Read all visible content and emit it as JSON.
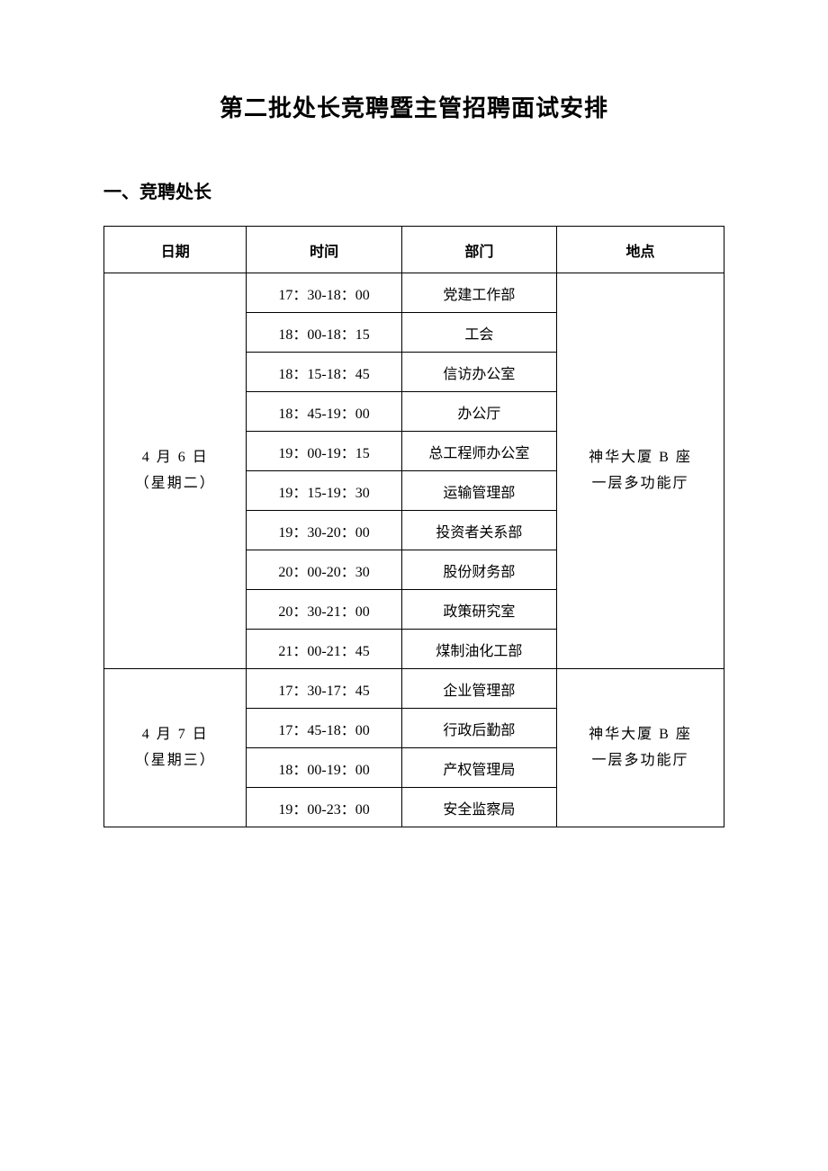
{
  "document": {
    "title": "第二批处长竞聘暨主管招聘面试安排",
    "section1_heading": "一、竞聘处长"
  },
  "table": {
    "headers": {
      "date": "日期",
      "time": "时间",
      "dept": "部门",
      "location": "地点"
    },
    "group1": {
      "date_line1": "4 月 6 日",
      "date_line2": "（星期二）",
      "location_line1": "神华大厦 B 座",
      "location_line2": "一层多功能厅",
      "rows": [
        {
          "time": "17：30-18：00",
          "dept": "党建工作部"
        },
        {
          "time": "18：00-18：15",
          "dept": "工会"
        },
        {
          "time": "18：15-18：45",
          "dept": "信访办公室"
        },
        {
          "time": "18：45-19：00",
          "dept": "办公厅"
        },
        {
          "time": "19：00-19：15",
          "dept": "总工程师办公室"
        },
        {
          "time": "19：15-19：30",
          "dept": "运输管理部"
        },
        {
          "time": "19：30-20：00",
          "dept": "投资者关系部"
        },
        {
          "time": "20：00-20：30",
          "dept": "股份财务部"
        },
        {
          "time": "20：30-21：00",
          "dept": "政策研究室"
        },
        {
          "time": "21：00-21：45",
          "dept": "煤制油化工部"
        }
      ]
    },
    "group2": {
      "date_line1": "4 月 7 日",
      "date_line2": "（星期三）",
      "location_line1": "神华大厦 B 座",
      "location_line2": "一层多功能厅",
      "rows": [
        {
          "time": "17：30-17：45",
          "dept": "企业管理部"
        },
        {
          "time": "17：45-18：00",
          "dept": "行政后勤部"
        },
        {
          "time": "18：00-19：00",
          "dept": "产权管理局"
        },
        {
          "time": "19：00-23：00",
          "dept": "安全监察局"
        }
      ]
    }
  },
  "style": {
    "background_color": "#ffffff",
    "border_color": "#000000",
    "title_fontsize": 26,
    "heading_fontsize": 20,
    "cell_fontsize": 16,
    "header_row_height": 52,
    "data_row_height": 44
  }
}
